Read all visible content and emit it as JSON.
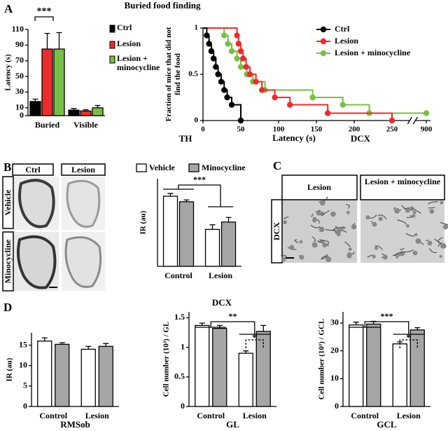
{
  "panel_labels": [
    "A",
    "B",
    "C",
    "D"
  ],
  "micrographs_B": {
    "columns": [
      "Ctrl",
      "Lesion"
    ],
    "rows": [
      "Vehicle",
      "Minocycline"
    ]
  },
  "micrographs_C": {
    "title": "DCX",
    "columns": [
      "Lesion",
      "Lesion + minocycline"
    ],
    "row_label": "DCX"
  },
  "chart_data": [
    {
      "type": "bar",
      "y_label": "Latency (s)",
      "categories": [
        "Buried",
        "Visible"
      ],
      "series": [
        {
          "name": "Ctrl",
          "color": "#000000",
          "values": [
            18,
            7
          ],
          "errors": [
            3,
            2
          ]
        },
        {
          "name": "Lesion",
          "color": "#ee2b2b",
          "values": [
            85,
            6
          ],
          "errors": [
            20,
            1.5
          ]
        },
        {
          "name": "Lesion + minocycline",
          "color": "#77c044",
          "values": [
            85,
            10
          ],
          "errors": [
            21,
            3
          ]
        }
      ],
      "ylim": [
        0,
        110
      ],
      "yticks": [
        0,
        10,
        30,
        50,
        70,
        90,
        110
      ],
      "annotations": [
        "***"
      ]
    },
    {
      "type": "step",
      "title": "Buried food finding",
      "x_label": "Latency (s)",
      "y_label": "Fraction of mice that did not find the food",
      "xlim": [
        0,
        900
      ],
      "x_break": 250,
      "xticks": [
        0,
        50,
        100,
        150,
        200,
        250,
        900
      ],
      "ylim": [
        0,
        1
      ],
      "yticks": [
        0,
        0.5,
        1
      ],
      "series": [
        {
          "name": "Ctrl",
          "color": "#000000",
          "x": [
            5,
            8,
            11,
            14,
            17,
            20,
            24,
            28,
            32,
            38,
            50
          ],
          "values": [
            0.92,
            0.83,
            0.75,
            0.67,
            0.58,
            0.5,
            0.42,
            0.33,
            0.25,
            0.17,
            0
          ]
        },
        {
          "name": "Lesion",
          "color": "#ee2b2b",
          "x": [
            45,
            47,
            50,
            53,
            57,
            62,
            70,
            78,
            95,
            115,
            165,
            250
          ],
          "values": [
            0.92,
            0.83,
            0.75,
            0.67,
            0.58,
            0.5,
            0.42,
            0.33,
            0.25,
            0.17,
            0.08,
            0
          ]
        },
        {
          "name": "Lesion + minocycline",
          "color": "#77c044",
          "x": [
            28,
            33,
            38,
            45,
            50,
            58,
            66,
            82,
            145,
            185,
            220,
            900
          ],
          "values": [
            0.92,
            0.83,
            0.75,
            0.67,
            0.58,
            0.5,
            0.42,
            0.33,
            0.25,
            0.17,
            0.08,
            0.08
          ]
        }
      ]
    },
    {
      "type": "bar",
      "title": "TH",
      "y_label": "IR (au)",
      "categories": [
        "Control",
        "Lesion"
      ],
      "series": [
        {
          "name": "Vehicle",
          "color": "#ffffff",
          "values": [
            0.76,
            0.4
          ],
          "errors": [
            0.03,
            0.05
          ]
        },
        {
          "name": "Minocycline",
          "color": "#a6a6a6",
          "values": [
            0.7,
            0.48
          ],
          "errors": [
            0.02,
            0.05
          ]
        }
      ],
      "ylim": [
        0,
        0.95
      ],
      "annotations": [
        "***"
      ]
    },
    {
      "type": "bar",
      "x_label": "RMSob",
      "y_label": "IR (au)",
      "categories": [
        "Control",
        "Lesion"
      ],
      "series": [
        {
          "color": "#ffffff",
          "values": [
            16,
            14
          ],
          "errors": [
            0.8,
            0.7
          ]
        },
        {
          "color": "#a6a6a6",
          "values": [
            15.2,
            14.7
          ],
          "errors": [
            0.4,
            0.7
          ]
        }
      ],
      "ylim": [
        0,
        18
      ],
      "yticks": [
        0,
        5,
        10,
        15
      ]
    },
    {
      "type": "bar",
      "title": "DCX",
      "x_label": "GL",
      "y_label": "Cell number (10³) / GL",
      "categories": [
        "Control",
        "Lesion"
      ],
      "series": [
        {
          "color": "#ffffff",
          "values": [
            1.37,
            0.9
          ],
          "errors": [
            0.04,
            0.04
          ]
        },
        {
          "color": "#a6a6a6",
          "values": [
            1.32,
            1.27
          ],
          "errors": [
            0.05,
            0.1
          ]
        }
      ],
      "ylim": [
        0,
        1.6
      ],
      "yticks": [
        0,
        0.5,
        1,
        1.5
      ],
      "annotations": [
        "**",
        "*"
      ]
    },
    {
      "type": "bar",
      "x_label": "GCL",
      "y_label": "Cell number (10³) / GCL",
      "categories": [
        "Control",
        "Lesion"
      ],
      "series": [
        {
          "color": "#ffffff",
          "values": [
            29.3,
            22.5
          ],
          "errors": [
            1,
            0.7
          ]
        },
        {
          "color": "#a6a6a6",
          "values": [
            29.6,
            27.5
          ],
          "errors": [
            1,
            0.8
          ]
        }
      ],
      "ylim": [
        0,
        34
      ],
      "yticks": [
        0,
        10,
        20,
        30
      ],
      "annotations": [
        "***",
        "*"
      ]
    }
  ]
}
